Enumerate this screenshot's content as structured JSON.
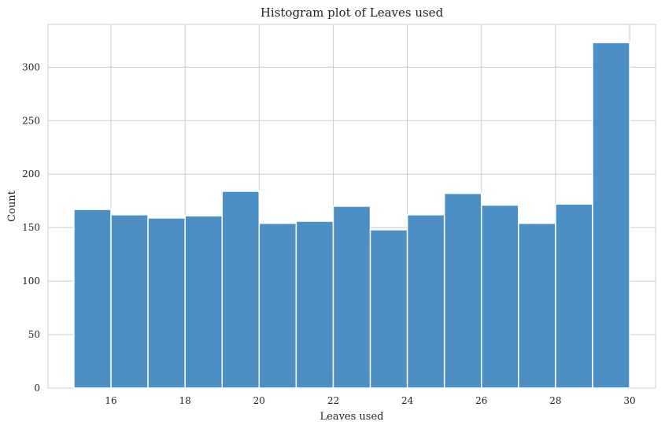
{
  "chart_data": {
    "type": "bar",
    "title": "Histogram plot of Leaves used",
    "xlabel": "Leaves used",
    "ylabel": "Count",
    "bin_edges": [
      15,
      16,
      17,
      18,
      19,
      20,
      21,
      22,
      23,
      24,
      25,
      26,
      27,
      28,
      29,
      30
    ],
    "values": [
      167,
      162,
      159,
      161,
      184,
      154,
      156,
      170,
      148,
      162,
      182,
      171,
      154,
      172,
      323
    ],
    "xlim": [
      14.3,
      30.7
    ],
    "ylim": [
      0,
      340
    ],
    "xticks": [
      16,
      18,
      20,
      22,
      24,
      26,
      28,
      30
    ],
    "yticks": [
      0,
      50,
      100,
      150,
      200,
      250,
      300
    ],
    "grid": true,
    "bar_color": "#4c8fc4",
    "grid_color": "#cccccc"
  }
}
